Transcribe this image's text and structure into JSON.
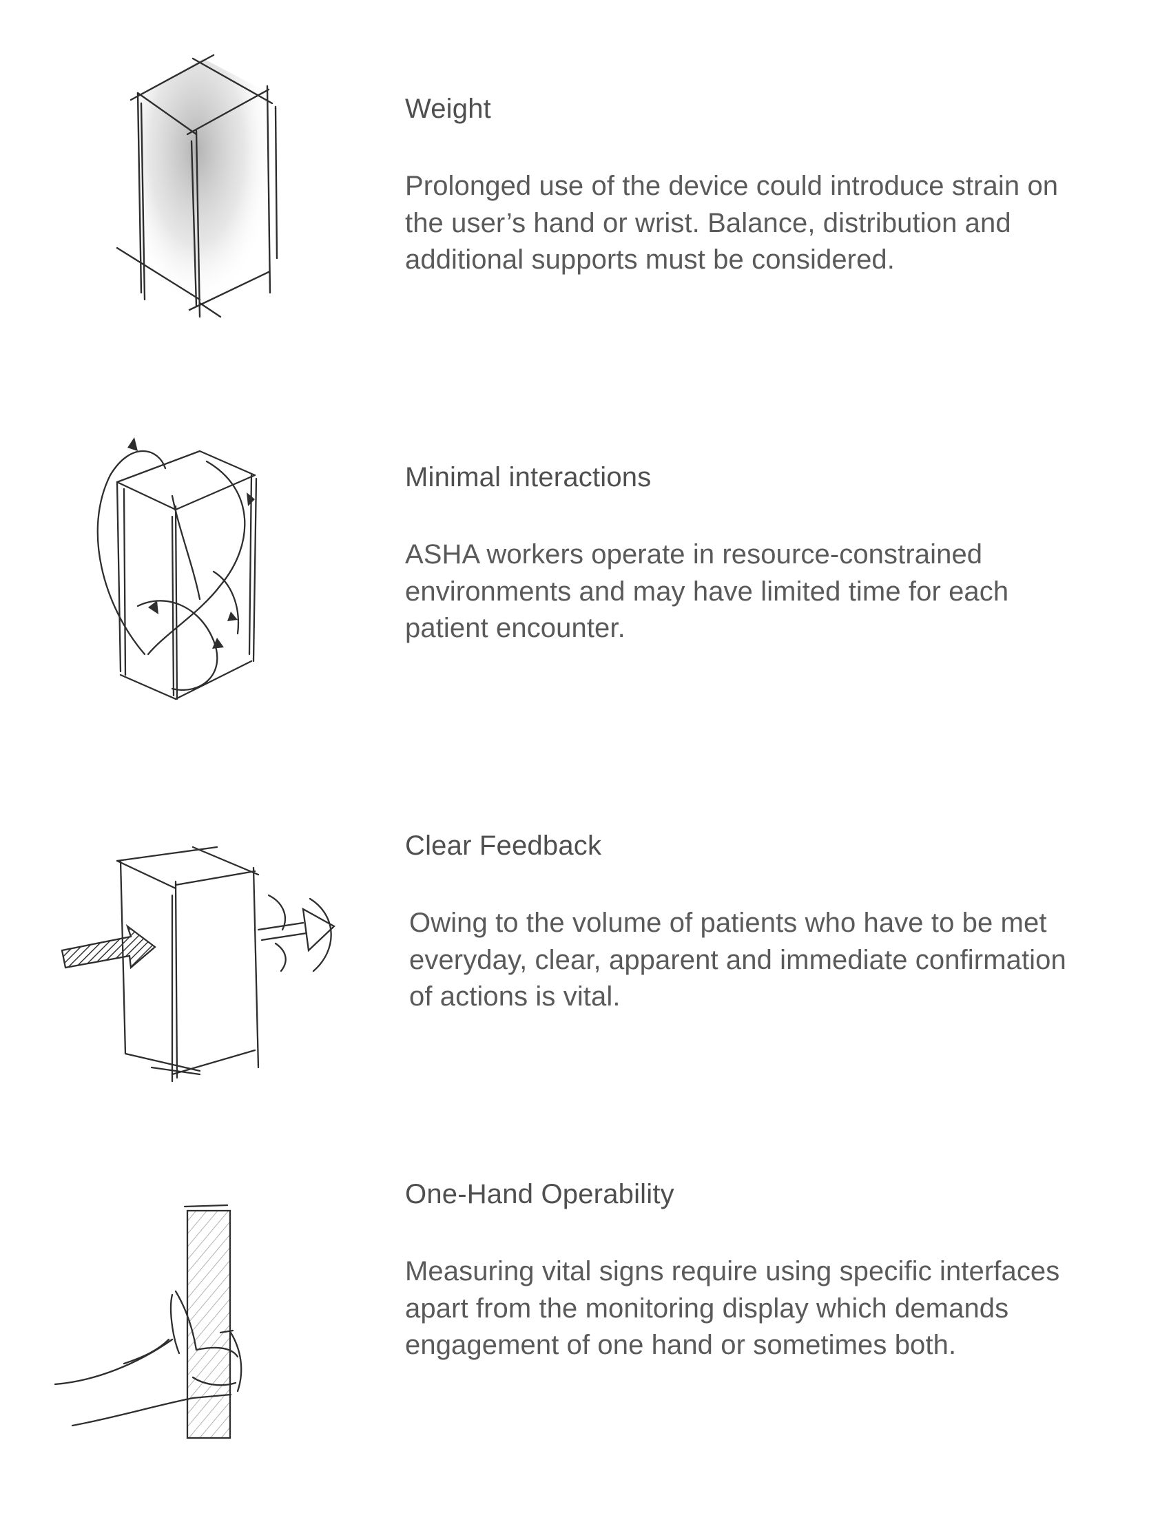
{
  "features": [
    {
      "title": "Weight",
      "description": "Prolonged use of the device could introduce strain on the user’s hand or wrist. Balance, distribution and additional supports must be considered.",
      "sketch_icon": "weighted-box-sketch-icon"
    },
    {
      "title": "Minimal interactions",
      "description": "ASHA workers operate in resource-constrained environments and may have limited time for each patient encounter.",
      "sketch_icon": "box-with-interaction-arrows-sketch-icon"
    },
    {
      "title": "Clear Feedback",
      "description": "Owing to the volume of patients who have to be met everyday, clear, apparent and immediate confirmation of actions is vital.",
      "sketch_icon": "box-with-input-output-arrows-sketch-icon"
    },
    {
      "title": "One-Hand Operability",
      "description": "Measuring vital signs require using specific interfaces apart from the monitoring display which demands engagement of one hand or sometimes both.",
      "sketch_icon": "hand-holding-device-sketch-icon"
    }
  ]
}
